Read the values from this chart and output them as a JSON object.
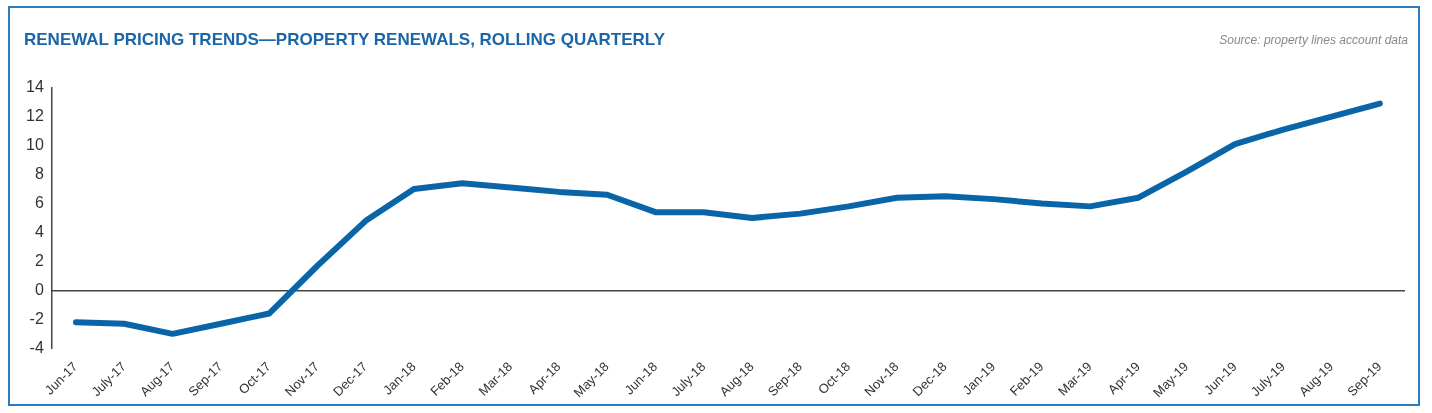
{
  "chart_data": {
    "type": "line",
    "title": "RENEWAL PRICING TRENDS—PROPERTY RENEWALS, ROLLING QUARTERLY",
    "annotations": [
      "Source: property lines account data"
    ],
    "categories": [
      "Jun-17",
      "July-17",
      "Aug-17",
      "Sep-17",
      "Oct-17",
      "Nov-17",
      "Dec-17",
      "Jan-18",
      "Feb-18",
      "Mar-18",
      "Apr-18",
      "May-18",
      "Jun-18",
      "July-18",
      "Aug-18",
      "Sep-18",
      "Oct-18",
      "Nov-18",
      "Dec-18",
      "Jan-19",
      "Feb-19",
      "Mar-19",
      "Apr-19",
      "May-19",
      "Jun-19",
      "July-19",
      "Aug-19",
      "Sep-19"
    ],
    "series": [
      {
        "color": "#0a65a8",
        "values": [
          -2.2,
          -2.3,
          -3.0,
          -2.3,
          -1.6,
          1.7,
          4.8,
          7.0,
          7.4,
          7.1,
          6.8,
          6.6,
          5.4,
          5.4,
          5.0,
          5.3,
          5.8,
          6.4,
          6.5,
          6.3,
          6.0,
          5.8,
          6.4,
          8.2,
          10.1,
          11.1,
          12.0,
          12.9
        ]
      }
    ],
    "ylim": [
      -4,
      14
    ],
    "yticks": [
      -4,
      -2,
      0,
      2,
      4,
      6,
      8,
      10,
      12,
      14
    ],
    "legend": false,
    "marker": "none",
    "line_style": "solid"
  }
}
